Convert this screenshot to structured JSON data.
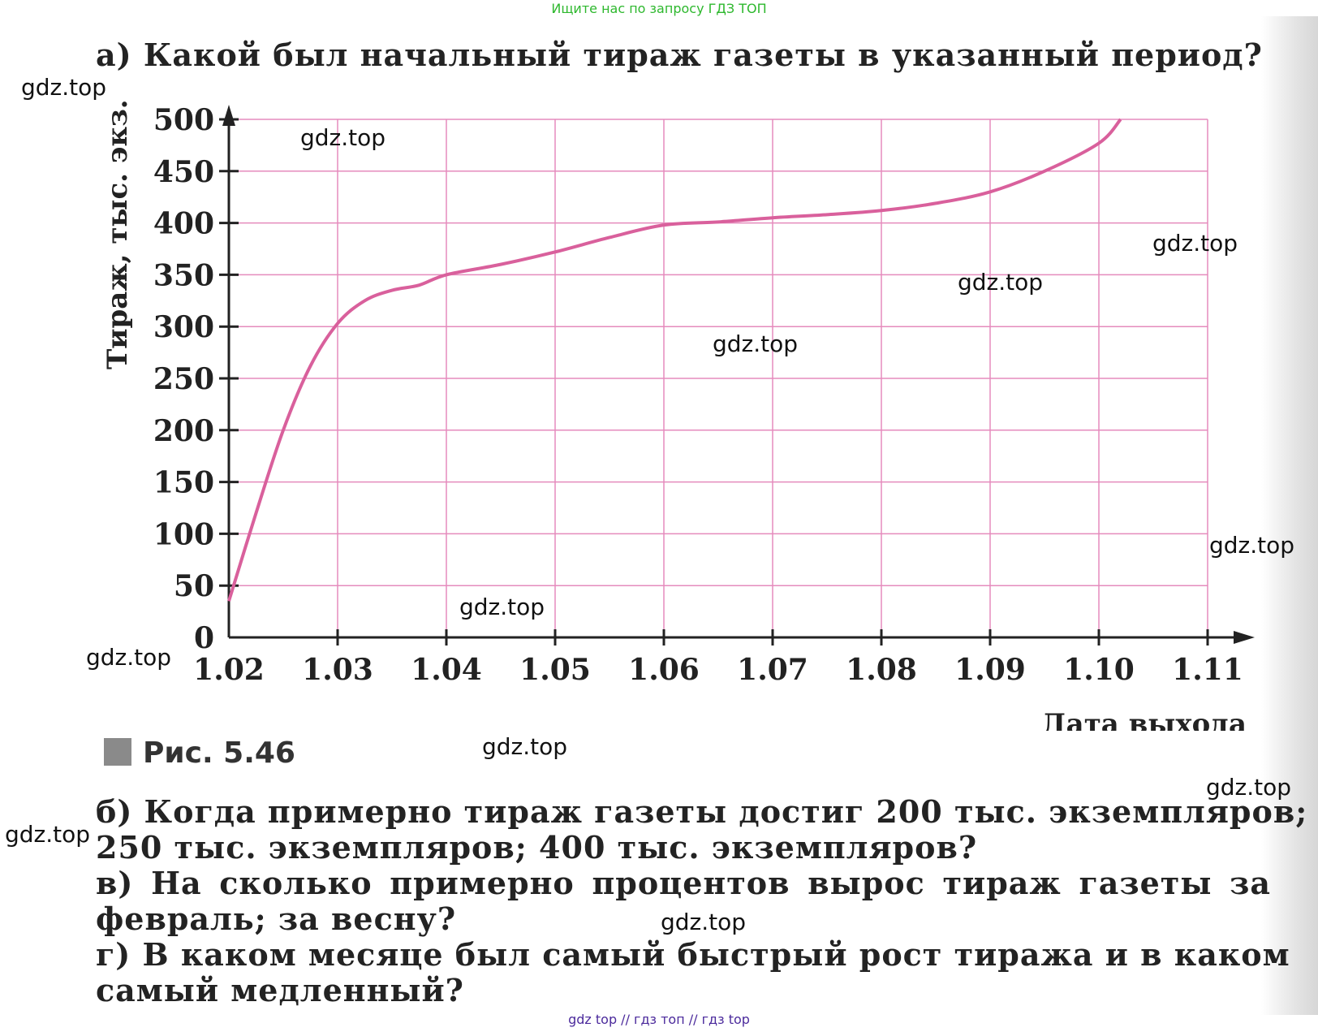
{
  "banner_top": "Ищите нас по запросу ГДЗ ТОП",
  "banner_bottom": "gdz top  //  гдз топ  //  гдз top",
  "questions": {
    "a": "а) Какой был начальный тираж газеты в указанный период?",
    "b1": "б) Когда примерно тираж газеты достиг 200 тыс. экземпляров;",
    "b2": "250 тыс. экземпляров; 400 тыс. экземпляров?",
    "v1": "в) На сколько примерно процентов вырос тираж газеты за",
    "v2": "февраль; за весну?",
    "g1": "г) В каком месяце был самый быстрый рост тиража и в каком",
    "g2": "самый медленный?"
  },
  "figure_caption": "Рис. 5.46",
  "watermark_text": "gdz.top",
  "chart_data": {
    "type": "line",
    "xlabel": "Дата выхода",
    "ylabel": "Тираж, тыс. экз.",
    "x_ticks": [
      "1.02",
      "1.03",
      "1.04",
      "1.05",
      "1.06",
      "1.07",
      "1.08",
      "1.09",
      "1.10",
      "1.11"
    ],
    "y_ticks": [
      "0",
      "50",
      "100",
      "150",
      "200",
      "250",
      "300",
      "350",
      "400",
      "450",
      "500"
    ],
    "ylim": [
      0,
      500
    ],
    "grid": true,
    "line_color": "#d9609c",
    "grid_color": "#e58bbd",
    "series": [
      {
        "values_by_month": [
          [
            0.0,
            35
          ],
          [
            0.25,
            120
          ],
          [
            0.5,
            200
          ],
          [
            0.75,
            262
          ],
          [
            1.0,
            303
          ],
          [
            1.25,
            325
          ],
          [
            1.5,
            335
          ],
          [
            1.75,
            340
          ],
          [
            2.0,
            350
          ],
          [
            2.5,
            360
          ],
          [
            3.0,
            372
          ],
          [
            3.5,
            386
          ],
          [
            4.0,
            398
          ],
          [
            4.5,
            401
          ],
          [
            5.0,
            405
          ],
          [
            5.5,
            408
          ],
          [
            6.0,
            412
          ],
          [
            6.5,
            419
          ],
          [
            7.0,
            430
          ],
          [
            7.5,
            450
          ],
          [
            8.0,
            477
          ],
          [
            8.2,
            500
          ]
        ]
      }
    ]
  }
}
